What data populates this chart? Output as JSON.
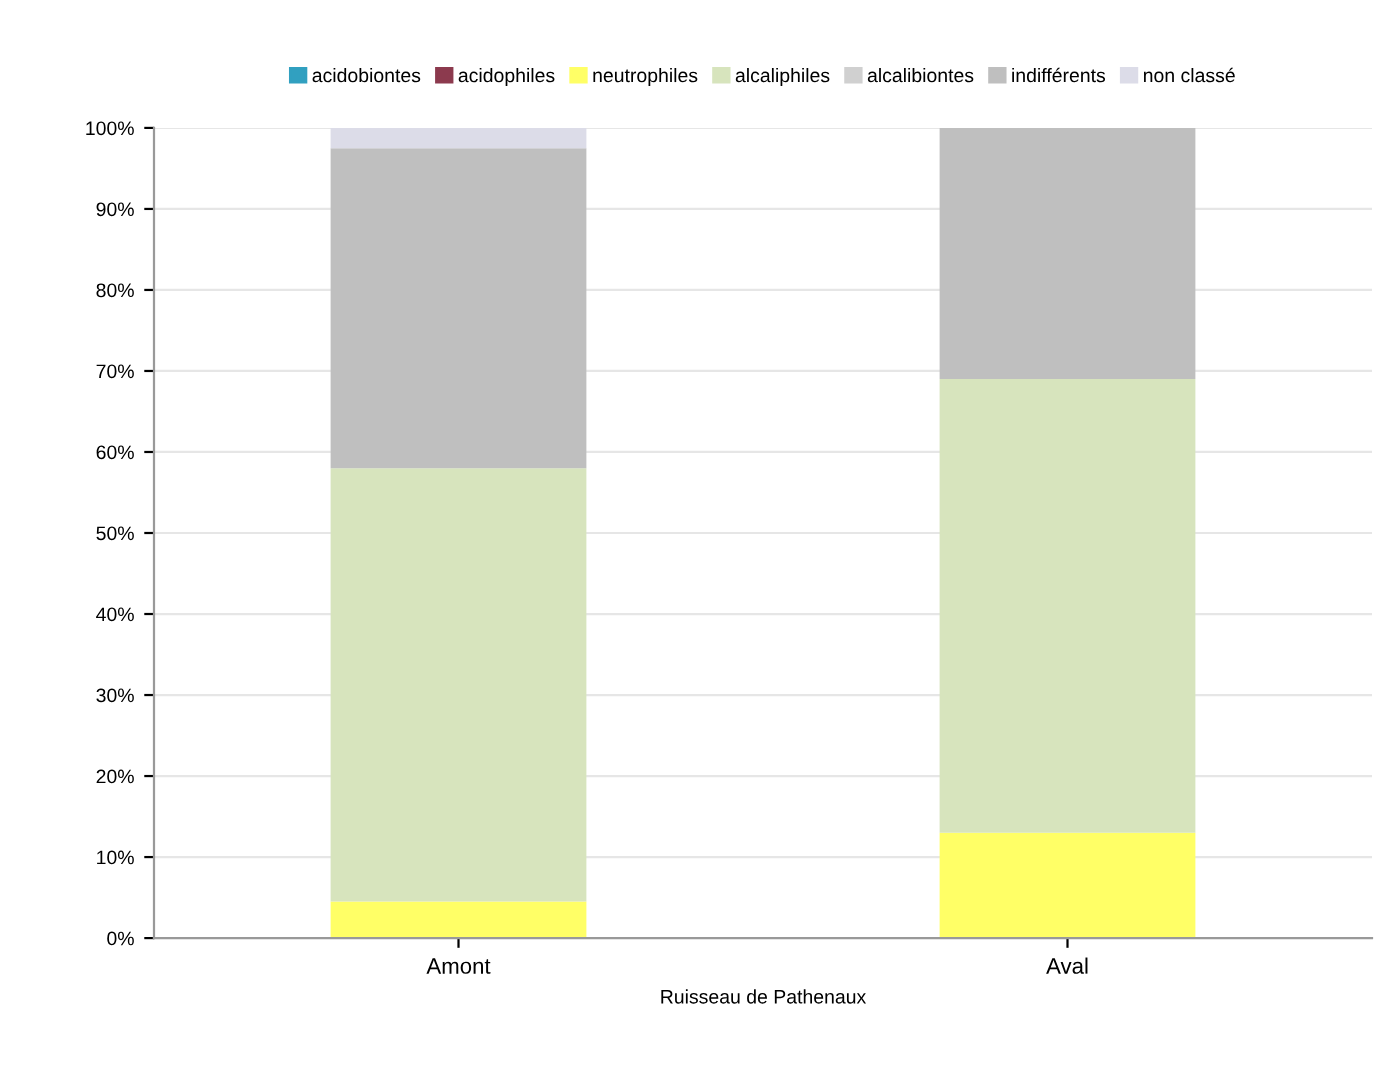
{
  "chart_data": {
    "type": "bar",
    "stacked": true,
    "xlabel": "Ruisseau de Pathenaux",
    "categories": [
      "Amont",
      "Aval"
    ],
    "series": [
      {
        "name": "acidobiontes",
        "color": "#31a0c0",
        "values": [
          0,
          0
        ]
      },
      {
        "name": "acidophiles",
        "color": "#8c3a4e",
        "values": [
          0,
          0
        ]
      },
      {
        "name": "neutrophiles",
        "color": "#ffff66",
        "values": [
          4.5,
          13
        ]
      },
      {
        "name": "alcaliphiles",
        "color": "#d7e4bd",
        "values": [
          53.5,
          56
        ]
      },
      {
        "name": "alcalibiontes",
        "color": "#d0d0d0",
        "values": [
          0,
          0
        ]
      },
      {
        "name": "indifférents",
        "color": "#bfbfbf",
        "values": [
          39.5,
          31
        ]
      },
      {
        "name": "non classé",
        "color": "#dcdce8",
        "values": [
          2.5,
          0
        ]
      }
    ],
    "ylim": [
      0,
      100
    ],
    "yticks": [
      {
        "value": 0,
        "label": "0%"
      },
      {
        "value": 10,
        "label": "10%"
      },
      {
        "value": 20,
        "label": "20%"
      },
      {
        "value": 30,
        "label": "30%"
      },
      {
        "value": 40,
        "label": "40%"
      },
      {
        "value": 50,
        "label": "50%"
      },
      {
        "value": 60,
        "label": "60%"
      },
      {
        "value": 70,
        "label": "70%"
      },
      {
        "value": 80,
        "label": "80%"
      },
      {
        "value": 90,
        "label": "90%"
      },
      {
        "value": 100,
        "label": "100%"
      }
    ],
    "grid": "y",
    "legend": "top"
  }
}
